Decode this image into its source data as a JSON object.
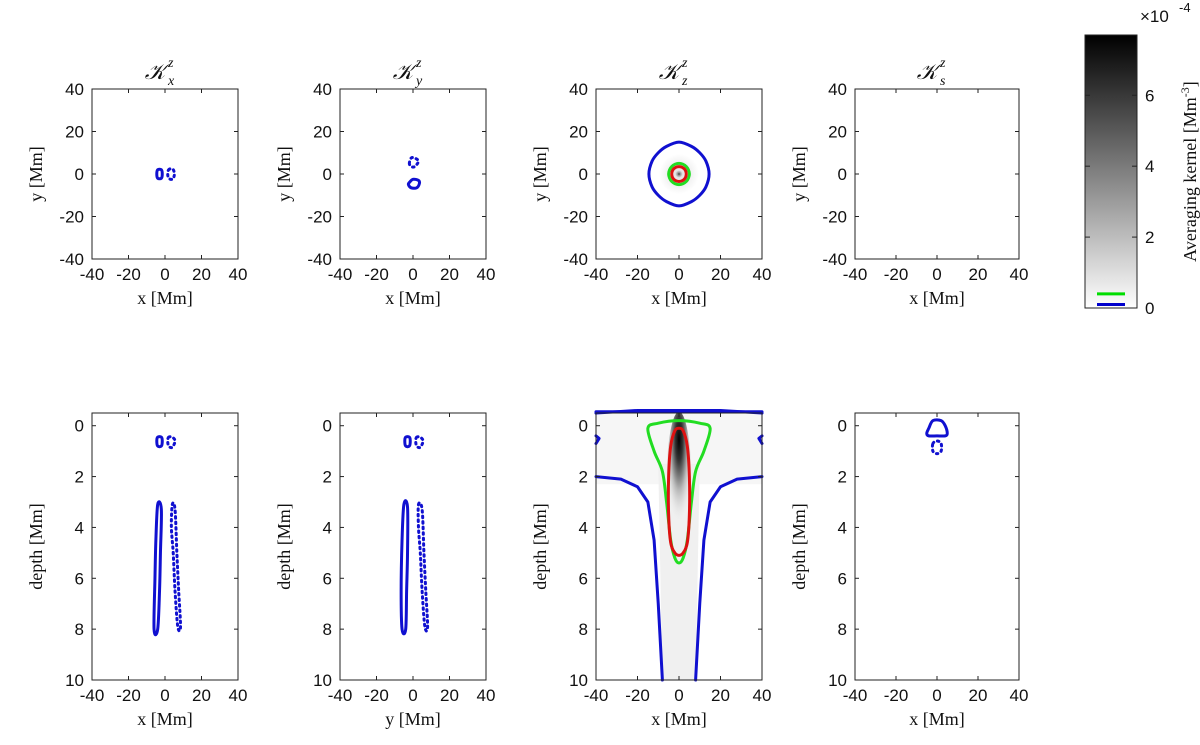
{
  "chart_data": [
    {
      "type": "contour",
      "title": {
        "main": "𝒦",
        "sup": "z",
        "sub": "x"
      },
      "xlabel": "x [Mm]",
      "ylabel": "y [Mm]",
      "xlim": [
        -40,
        40
      ],
      "ylim": [
        -40,
        40
      ],
      "xticks": [
        -40,
        -20,
        0,
        20,
        40
      ],
      "yticks": [
        -40,
        -20,
        0,
        20,
        40
      ],
      "contours": [
        {
          "color": "blue",
          "style": "solid",
          "points": [
            [
              -4,
              2
            ],
            [
              -2,
              2
            ],
            [
              -1.5,
              0
            ],
            [
              -2,
              -2
            ],
            [
              -4,
              -2
            ],
            [
              -4.5,
              0
            ]
          ]
        },
        {
          "color": "blue",
          "style": "dotted",
          "points": [
            [
              2,
              2
            ],
            [
              4,
              2.5
            ],
            [
              5,
              1
            ],
            [
              5,
              -1
            ],
            [
              4,
              -2.5
            ],
            [
              2,
              -2
            ],
            [
              1.5,
              0
            ]
          ]
        }
      ]
    },
    {
      "type": "contour",
      "title": {
        "main": "𝒦",
        "sup": "z",
        "sub": "y"
      },
      "xlabel": "x [Mm]",
      "ylabel": "y [Mm]",
      "xlim": [
        -40,
        40
      ],
      "ylim": [
        -40,
        40
      ],
      "xticks": [
        -40,
        -20,
        0,
        20,
        40
      ],
      "yticks": [
        -40,
        -20,
        0,
        20,
        40
      ],
      "contours": [
        {
          "color": "blue",
          "style": "dotted",
          "points": [
            [
              -2,
              5
            ],
            [
              -1,
              7.5
            ],
            [
              1,
              7.5
            ],
            [
              3,
              6
            ],
            [
              1,
              3.5
            ],
            [
              -1,
              3.5
            ]
          ]
        },
        {
          "color": "blue",
          "style": "solid",
          "points": [
            [
              -2,
              -4
            ],
            [
              0,
              -2.5
            ],
            [
              3,
              -3
            ],
            [
              3.5,
              -4.5
            ],
            [
              2,
              -6.5
            ],
            [
              -1,
              -6.5
            ],
            [
              -2.5,
              -5
            ]
          ]
        }
      ]
    },
    {
      "type": "heatmap+contour",
      "title": {
        "main": "𝒦",
        "sup": "z",
        "sub": "z"
      },
      "xlabel": "x [Mm]",
      "ylabel": "y [Mm]",
      "xlim": [
        -40,
        40
      ],
      "ylim": [
        -40,
        40
      ],
      "xticks": [
        -40,
        -20,
        0,
        20,
        40
      ],
      "yticks": [
        -40,
        -20,
        0,
        20,
        40
      ],
      "contours": [
        {
          "color": "blue",
          "style": "solid",
          "points": [
            [
              0,
              15
            ],
            [
              6,
              13
            ],
            [
              10,
              10
            ],
            [
              13,
              6
            ],
            [
              14.5,
              0
            ],
            [
              13,
              -6
            ],
            [
              10,
              -10
            ],
            [
              6,
              -13
            ],
            [
              0,
              -15
            ],
            [
              -6,
              -13
            ],
            [
              -10,
              -10
            ],
            [
              -13,
              -6
            ],
            [
              -14.5,
              0
            ],
            [
              -13,
              6
            ],
            [
              -10,
              10
            ],
            [
              -6,
              13
            ]
          ]
        },
        {
          "color": "green",
          "style": "solid",
          "points": [
            [
              0,
              5
            ],
            [
              3.5,
              3.5
            ],
            [
              5,
              0
            ],
            [
              3.5,
              -3.5
            ],
            [
              0,
              -5
            ],
            [
              -3.5,
              -3.5
            ],
            [
              -5,
              0
            ],
            [
              -3.5,
              3.5
            ]
          ]
        },
        {
          "color": "red",
          "style": "solid",
          "points": [
            [
              0,
              3.5
            ],
            [
              2.5,
              2.5
            ],
            [
              3.5,
              0
            ],
            [
              2.5,
              -2.5
            ],
            [
              0,
              -3.5
            ],
            [
              -2.5,
              -2.5
            ],
            [
              -3.5,
              0
            ],
            [
              -2.5,
              2.5
            ]
          ]
        }
      ]
    },
    {
      "type": "contour",
      "title": {
        "main": "𝒦",
        "sup": "z",
        "sub": "s"
      },
      "xlabel": "x [Mm]",
      "ylabel": "y [Mm]",
      "xlim": [
        -40,
        40
      ],
      "ylim": [
        -40,
        40
      ],
      "xticks": [
        -40,
        -20,
        0,
        20,
        40
      ],
      "yticks": [
        -40,
        -20,
        0,
        20,
        40
      ],
      "contours": []
    },
    {
      "type": "contour",
      "title": null,
      "xlabel": "x [Mm]",
      "ylabel": "depth [Mm]",
      "xlim": [
        -40,
        40
      ],
      "ylim": [
        10,
        -0.5
      ],
      "xticks": [
        -40,
        -20,
        0,
        20,
        40
      ],
      "yticks": [
        0,
        2,
        4,
        6,
        8,
        10
      ],
      "contours": [
        {
          "color": "blue",
          "style": "solid",
          "points": [
            [
              -4,
              0.45
            ],
            [
              -2,
              0.45
            ],
            [
              -1.5,
              0.6
            ],
            [
              -2,
              0.8
            ],
            [
              -4,
              0.8
            ],
            [
              -4.5,
              0.6
            ]
          ]
        },
        {
          "color": "blue",
          "style": "dotted",
          "points": [
            [
              2,
              0.45
            ],
            [
              4,
              0.45
            ],
            [
              5.5,
              0.6
            ],
            [
              4,
              0.85
            ],
            [
              2,
              0.8
            ],
            [
              1.5,
              0.6
            ]
          ]
        },
        {
          "color": "blue",
          "style": "solid",
          "points": [
            [
              -4,
              3.1
            ],
            [
              -2,
              3.3
            ],
            [
              -2.5,
              5
            ],
            [
              -3,
              6.5
            ],
            [
              -4,
              8
            ],
            [
              -6,
              8
            ],
            [
              -5.5,
              6
            ],
            [
              -5,
              4.5
            ]
          ]
        },
        {
          "color": "blue",
          "style": "dotted",
          "points": [
            [
              4,
              3.1
            ],
            [
              5.5,
              3.3
            ],
            [
              6.5,
              5
            ],
            [
              7.5,
              6.5
            ],
            [
              8.5,
              7.9
            ],
            [
              7,
              7.9
            ],
            [
              5.5,
              6.5
            ],
            [
              4.5,
              5
            ],
            [
              3.5,
              4
            ]
          ]
        }
      ]
    },
    {
      "type": "contour",
      "title": null,
      "xlabel": "y [Mm]",
      "ylabel": "depth [Mm]",
      "xlim": [
        -40,
        40
      ],
      "ylim": [
        10,
        -0.5
      ],
      "xticks": [
        -40,
        -20,
        0,
        20,
        40
      ],
      "yticks": [
        0,
        2,
        4,
        6,
        8,
        10
      ],
      "contours": [
        {
          "color": "blue",
          "style": "solid",
          "points": [
            [
              -4,
              0.45
            ],
            [
              -2,
              0.45
            ],
            [
              -1.5,
              0.6
            ],
            [
              -2,
              0.8
            ],
            [
              -4,
              0.8
            ],
            [
              -4.5,
              0.6
            ]
          ]
        },
        {
          "color": "blue",
          "style": "dotted",
          "points": [
            [
              2,
              0.45
            ],
            [
              4,
              0.45
            ],
            [
              5.5,
              0.6
            ],
            [
              4,
              0.85
            ],
            [
              2,
              0.8
            ],
            [
              1.5,
              0.6
            ]
          ]
        },
        {
          "color": "blue",
          "style": "solid",
          "points": [
            [
              -5,
              3.1
            ],
            [
              -3,
              3.2
            ],
            [
              -3,
              5
            ],
            [
              -3.5,
              6.5
            ],
            [
              -4,
              8
            ],
            [
              -6,
              8
            ],
            [
              -6.5,
              6.5
            ],
            [
              -6,
              4.5
            ]
          ]
        },
        {
          "color": "blue",
          "style": "dotted",
          "points": [
            [
              3,
              3.1
            ],
            [
              5,
              3.3
            ],
            [
              6,
              5
            ],
            [
              7,
              6.5
            ],
            [
              8,
              7.9
            ],
            [
              6.5,
              7.9
            ],
            [
              5,
              6.5
            ],
            [
              4,
              5
            ],
            [
              3,
              4
            ]
          ]
        }
      ]
    },
    {
      "type": "heatmap+contour",
      "title": null,
      "xlabel": "x [Mm]",
      "ylabel": "depth [Mm]",
      "xlim": [
        -40,
        40
      ],
      "ylim": [
        10,
        -0.5
      ],
      "xticks": [
        -40,
        -20,
        0,
        20,
        40
      ],
      "yticks": [
        0,
        2,
        4,
        6,
        8,
        10
      ],
      "contours": [
        {
          "color": "blue",
          "style": "solid",
          "closed": false,
          "points": [
            [
              -40,
              -0.5
            ],
            [
              -40,
              -0.55
            ],
            [
              40,
              -0.55
            ],
            [
              40,
              -0.5
            ]
          ]
        },
        {
          "color": "blue",
          "style": "solid",
          "closed": false,
          "points": [
            [
              -40,
              -0.5
            ],
            [
              -30,
              -0.55
            ],
            [
              -20,
              -0.6
            ],
            [
              0,
              -0.6
            ],
            [
              20,
              -0.6
            ],
            [
              30,
              -0.55
            ],
            [
              40,
              -0.5
            ]
          ]
        },
        {
          "color": "blue",
          "style": "solid",
          "closed": false,
          "points": [
            [
              -40,
              2.0
            ],
            [
              -28,
              2.1
            ],
            [
              -20,
              2.4
            ],
            [
              -15,
              3.0
            ],
            [
              -12,
              4.5
            ],
            [
              -10,
              7
            ],
            [
              -8,
              10
            ]
          ]
        },
        {
          "color": "blue",
          "style": "solid",
          "closed": false,
          "points": [
            [
              40,
              2.0
            ],
            [
              28,
              2.1
            ],
            [
              20,
              2.4
            ],
            [
              15,
              3.0
            ],
            [
              12,
              4.5
            ],
            [
              10,
              7
            ],
            [
              8,
              10
            ]
          ]
        },
        {
          "color": "blue",
          "style": "solid",
          "closed": false,
          "points": [
            [
              -40,
              0.4
            ],
            [
              -38.5,
              0.5
            ],
            [
              -40,
              0.7
            ]
          ]
        },
        {
          "color": "blue",
          "style": "solid",
          "closed": false,
          "points": [
            [
              40,
              0.4
            ],
            [
              38.5,
              0.5
            ],
            [
              40,
              0.7
            ]
          ]
        },
        {
          "color": "green",
          "style": "solid",
          "points": [
            [
              -15,
              0.1
            ],
            [
              -10,
              -0.1
            ],
            [
              0,
              -0.2
            ],
            [
              10,
              -0.1
            ],
            [
              15,
              0.1
            ],
            [
              12,
              1.0
            ],
            [
              8,
              1.8
            ],
            [
              6,
              3
            ],
            [
              4,
              4.5
            ],
            [
              2,
              5.2
            ],
            [
              0,
              5.4
            ],
            [
              -2,
              5.2
            ],
            [
              -4,
              4.5
            ],
            [
              -6,
              3
            ],
            [
              -8,
              1.8
            ],
            [
              -12,
              1.0
            ]
          ]
        },
        {
          "color": "red",
          "style": "solid",
          "points": [
            [
              0,
              0.1
            ],
            [
              2,
              0.2
            ],
            [
              4,
              0.8
            ],
            [
              5,
              2
            ],
            [
              5,
              3.5
            ],
            [
              4,
              4.6
            ],
            [
              2,
              5.0
            ],
            [
              0,
              5.1
            ],
            [
              -2,
              5.0
            ],
            [
              -4,
              4.6
            ],
            [
              -5,
              3.5
            ],
            [
              -5,
              2
            ],
            [
              -4,
              0.8
            ],
            [
              -2,
              0.2
            ]
          ]
        }
      ]
    },
    {
      "type": "contour",
      "title": null,
      "xlabel": "x [Mm]",
      "ylabel": "depth [Mm]",
      "xlim": [
        -40,
        40
      ],
      "ylim": [
        10,
        -0.5
      ],
      "xticks": [
        -40,
        -20,
        0,
        20,
        40
      ],
      "yticks": [
        0,
        2,
        4,
        6,
        8,
        10
      ],
      "contours": [
        {
          "color": "blue",
          "style": "solid",
          "points": [
            [
              -4,
              0.1
            ],
            [
              -2,
              -0.2
            ],
            [
              2,
              -0.2
            ],
            [
              4,
              0
            ],
            [
              5,
              0.3
            ],
            [
              4,
              0.4
            ],
            [
              0,
              0.4
            ],
            [
              -4,
              0.4
            ],
            [
              -5,
              0.3
            ]
          ]
        },
        {
          "color": "blue",
          "style": "dotted",
          "points": [
            [
              -2,
              0.7
            ],
            [
              0,
              0.6
            ],
            [
              2,
              0.7
            ],
            [
              2,
              1.0
            ],
            [
              0,
              1.1
            ],
            [
              -2,
              1.0
            ]
          ]
        }
      ]
    }
  ],
  "colorbar": {
    "label": "Averaging kernel [Mm⁻³]",
    "label_text": "Averaging kernel [Mm",
    "label_exp": "-3",
    "label_close": "]",
    "exponent_prefix": "×10",
    "exponent_power": "-4",
    "range": [
      0,
      7.7
    ],
    "ticks": [
      0,
      2,
      4,
      6
    ],
    "colormap": [
      "#ffffff",
      "#000000"
    ],
    "contour_levels": [
      {
        "color": "#00dd00",
        "value": 0.4
      },
      {
        "color": "#0000cc",
        "value": 0.1
      }
    ]
  },
  "colors": {
    "blue": "#1010d0",
    "green": "#22dd22",
    "red": "#dd1111"
  }
}
